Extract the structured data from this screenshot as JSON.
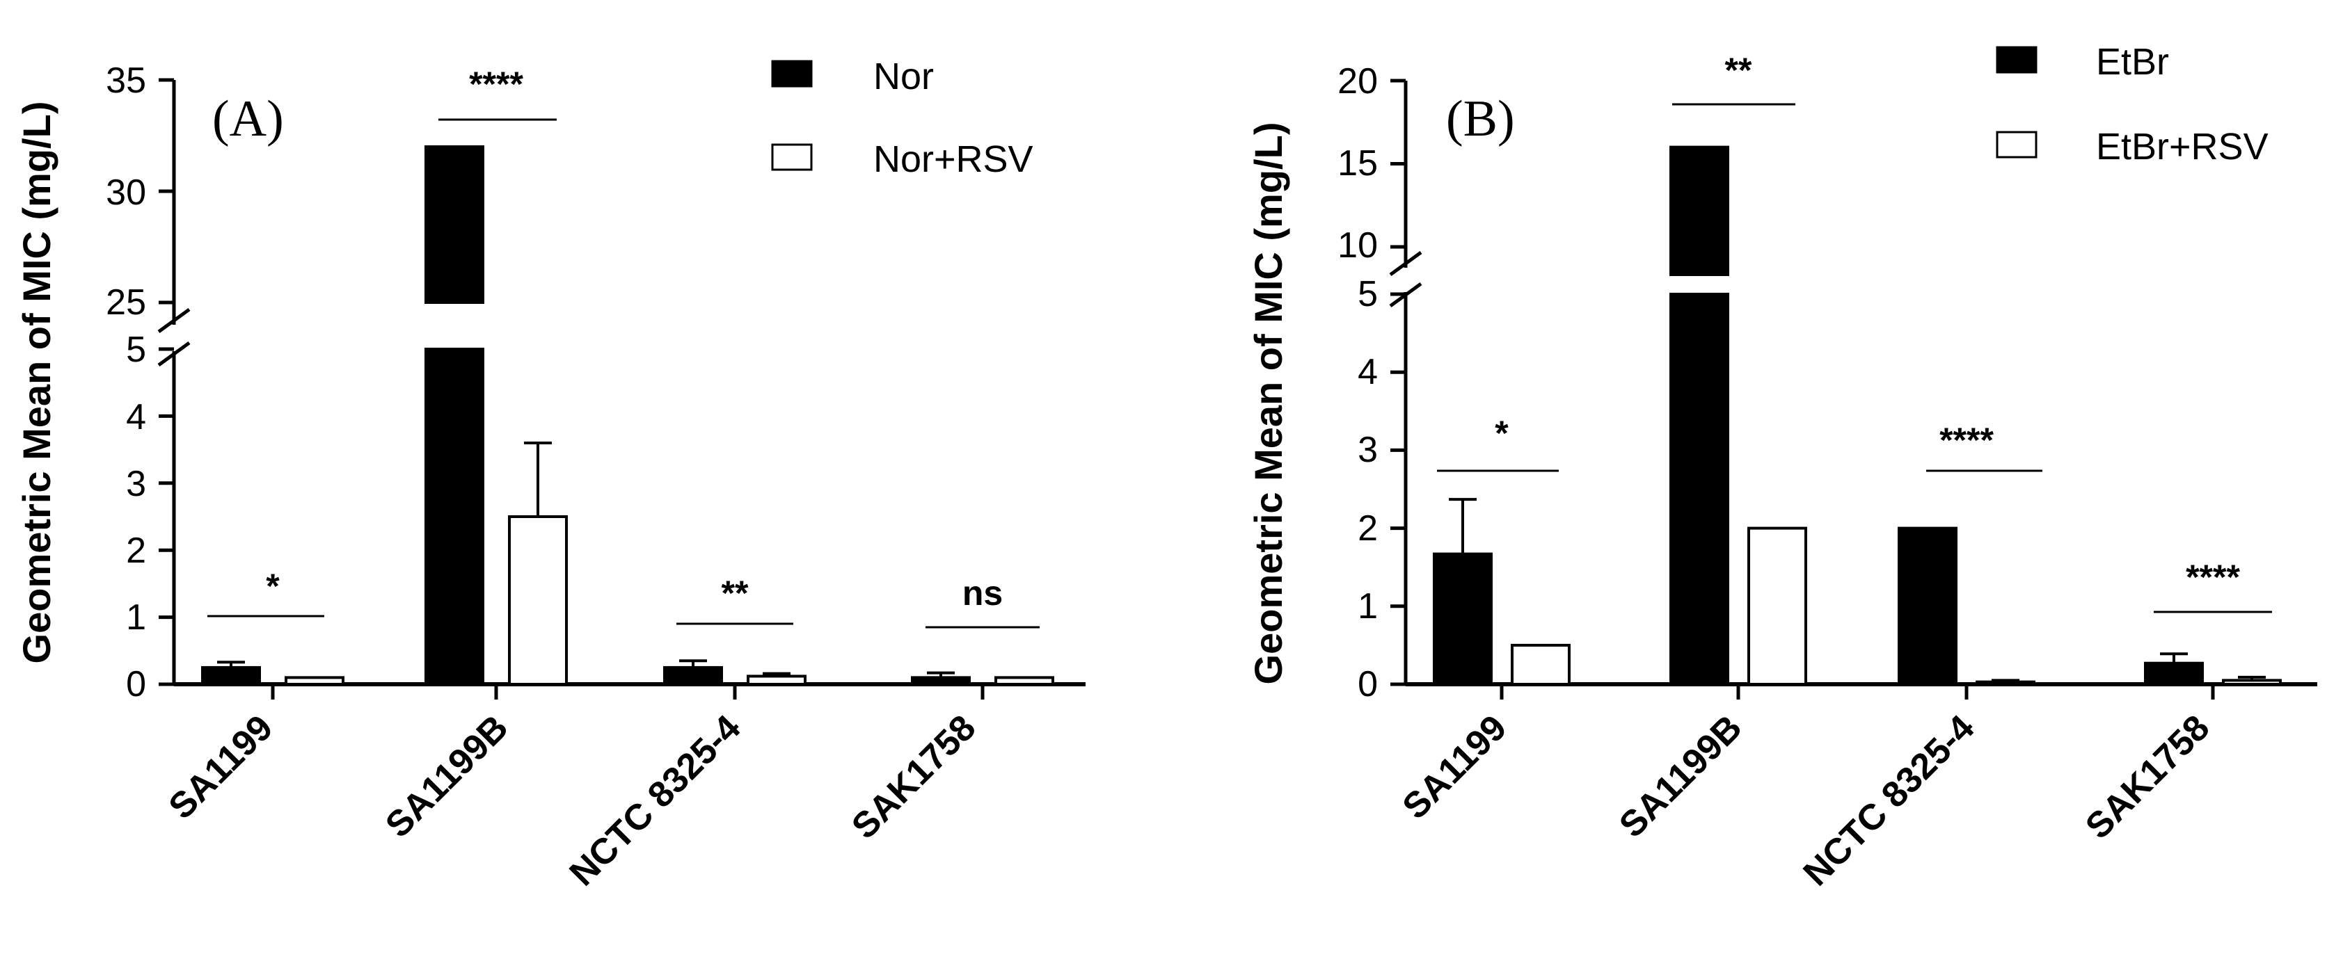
{
  "chart_data": [
    {
      "type": "bar",
      "panel_label": "(A)",
      "ylabel": "Geometric Mean of MIC (mg/L)",
      "categories": [
        "SA1199",
        "SA1199B",
        "NCTC 8325-4",
        "SAK1758"
      ],
      "series": [
        {
          "name": "Nor",
          "fill": "#000000",
          "values": [
            0.25,
            32,
            0.25,
            0.1
          ],
          "errors": [
            0.08,
            0,
            0.1,
            0.07
          ]
        },
        {
          "name": "Nor+RSV",
          "fill": "#ffffff",
          "values": [
            0.1,
            2.5,
            0.12,
            0.1
          ],
          "errors": [
            0,
            1.1,
            0.04,
            0
          ]
        }
      ],
      "significance": [
        "*",
        "****",
        "**",
        "ns"
      ],
      "axis_break": {
        "lower": [
          0,
          5
        ],
        "upper": [
          25,
          35
        ]
      },
      "yticks_lower": [
        "0",
        "1",
        "2",
        "3",
        "4",
        "5"
      ],
      "yticks_upper": [
        "25",
        "30",
        "35"
      ]
    },
    {
      "type": "bar",
      "panel_label": "(B)",
      "ylabel": "Geometric Mean of MIC (mg/L)",
      "categories": [
        "SA1199",
        "SA1199B",
        "NCTC 8325-4",
        "SAK1758"
      ],
      "series": [
        {
          "name": "EtBr",
          "fill": "#000000",
          "values": [
            1.67,
            16,
            2,
            0.27
          ],
          "errors": [
            0.7,
            0,
            0,
            0.12
          ]
        },
        {
          "name": "EtBr+RSV",
          "fill": "#ffffff",
          "values": [
            0.5,
            2,
            0.03,
            0.05
          ],
          "errors": [
            0,
            0,
            0.02,
            0.04
          ]
        }
      ],
      "significance": [
        "*",
        "**",
        "****",
        "****"
      ],
      "axis_break": {
        "lower": [
          0,
          5
        ],
        "upper": [
          10,
          20
        ]
      },
      "yticks_lower": [
        "0",
        "1",
        "2",
        "3",
        "4",
        "5"
      ],
      "yticks_upper": [
        "10",
        "15",
        "20"
      ]
    }
  ]
}
